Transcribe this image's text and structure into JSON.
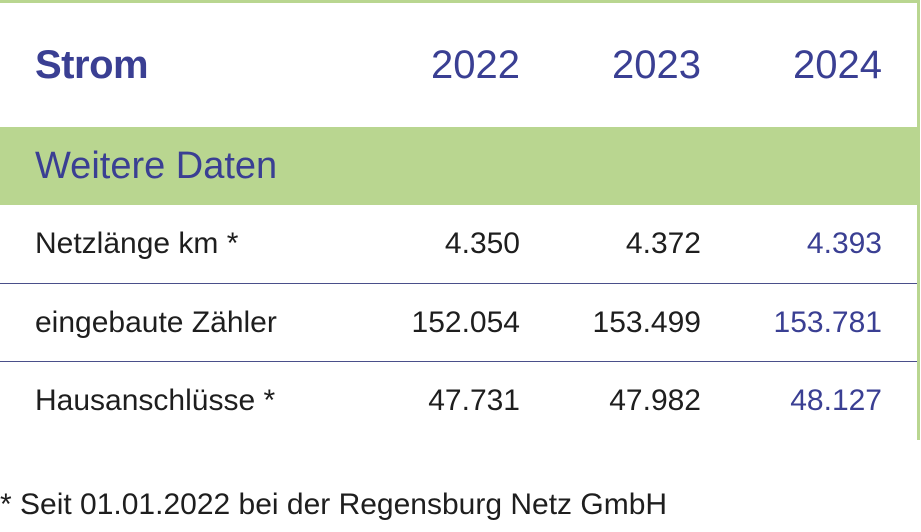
{
  "table": {
    "header": {
      "label": "Strom",
      "years": [
        "2022",
        "2023",
        "2024"
      ]
    },
    "section": {
      "label": "Weitere Daten"
    },
    "rows": [
      {
        "label": "Netzlänge km *",
        "values": [
          "4.350",
          "4.372",
          "4.393"
        ]
      },
      {
        "label": "eingebaute Zähler",
        "values": [
          "152.054",
          "153.499",
          "153.781"
        ]
      },
      {
        "label": "Hausanschlüsse *",
        "values": [
          "47.731",
          "47.982",
          "48.127"
        ]
      }
    ]
  },
  "footnote": "* Seit 01.01.2022 bei der Regensburg Netz GmbH",
  "colors": {
    "accent_green": "#b9d690",
    "text_blue": "#3a3f93",
    "text_dark": "#1e1e1e"
  }
}
